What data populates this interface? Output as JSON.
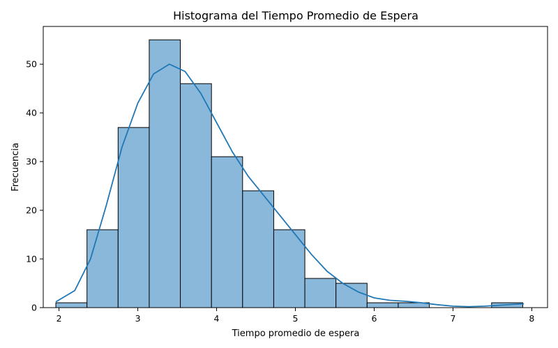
{
  "chart_data": {
    "type": "bar",
    "subtype": "histogram",
    "title": "Histograma del Tiempo Promedio de Espera",
    "xlabel": "Tiempo promedio de espera",
    "ylabel": "Frecuencia",
    "xlim": [
      1.8,
      8.2
    ],
    "ylim": [
      0,
      57.75
    ],
    "xticks": [
      2,
      3,
      4,
      5,
      6,
      7,
      8
    ],
    "yticks": [
      0,
      10,
      20,
      30,
      40,
      50
    ],
    "bin_edges": [
      1.96,
      2.355,
      2.75,
      3.145,
      3.54,
      3.935,
      4.33,
      4.725,
      5.12,
      5.515,
      5.91,
      6.305,
      6.7,
      7.095,
      7.49,
      7.885
    ],
    "counts": [
      1,
      16,
      37,
      55,
      46,
      31,
      24,
      16,
      6,
      5,
      1,
      1,
      0,
      0,
      1
    ],
    "kde": {
      "x": [
        1.96,
        2.2,
        2.4,
        2.6,
        2.8,
        3.0,
        3.2,
        3.4,
        3.6,
        3.8,
        4.0,
        4.2,
        4.4,
        4.6,
        4.8,
        5.0,
        5.2,
        5.4,
        5.6,
        5.8,
        6.0,
        6.2,
        6.4,
        6.6,
        6.8,
        7.0,
        7.2,
        7.4,
        7.6,
        7.9
      ],
      "y": [
        1.2,
        3.5,
        10.0,
        21.0,
        33.0,
        42.0,
        48.0,
        50.0,
        48.5,
        44.0,
        38.0,
        32.0,
        27.0,
        23.0,
        19.0,
        15.0,
        11.0,
        7.5,
        5.0,
        3.2,
        2.0,
        1.5,
        1.3,
        1.0,
        0.6,
        0.3,
        0.2,
        0.3,
        0.5,
        0.8
      ]
    },
    "colors": {
      "bar": "#8ab8db",
      "edge": "#000000",
      "kde": "#1f77b4"
    },
    "grid": false,
    "legend": "none"
  }
}
